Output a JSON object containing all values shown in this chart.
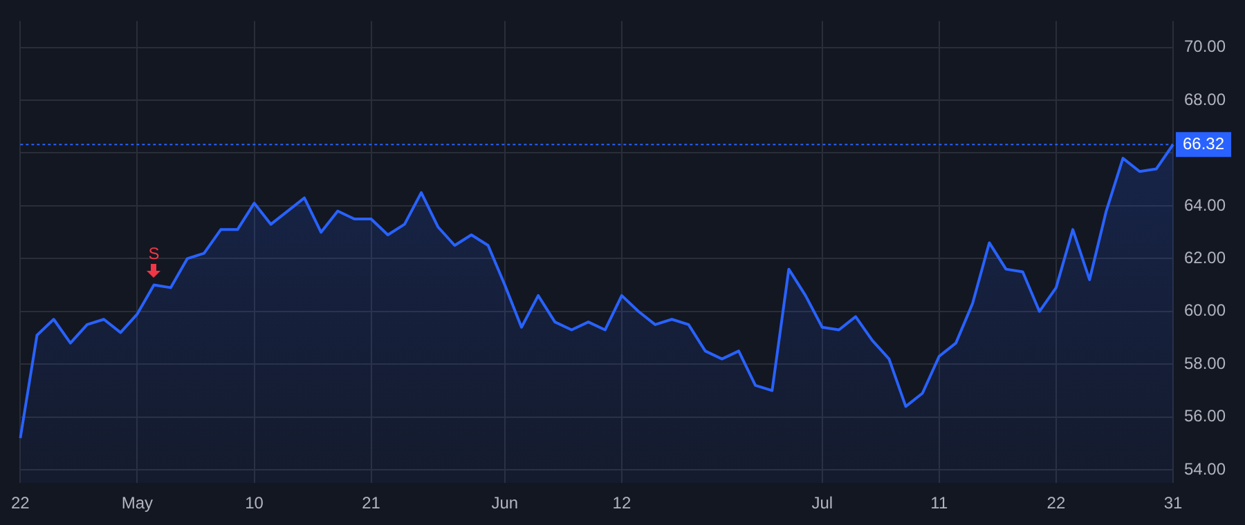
{
  "chart_data": {
    "type": "area",
    "categories": [
      "22",
      null,
      null,
      null,
      null,
      null,
      null,
      "May",
      null,
      null,
      null,
      null,
      null,
      null,
      "10",
      null,
      null,
      null,
      null,
      null,
      null,
      "21",
      null,
      null,
      null,
      null,
      null,
      null,
      null,
      "Jun",
      null,
      null,
      null,
      null,
      null,
      null,
      "12",
      null,
      null,
      null,
      null,
      null,
      null,
      null,
      null,
      null,
      null,
      null,
      "Jul",
      null,
      null,
      null,
      null,
      null,
      null,
      "11",
      null,
      null,
      null,
      null,
      null,
      null,
      "22",
      null,
      null,
      null,
      null,
      null,
      null,
      "31"
    ],
    "series": [
      {
        "color": "#2962ff",
        "values": [
          55.2,
          59.1,
          59.7,
          58.8,
          59.5,
          59.7,
          59.2,
          59.9,
          61.0,
          60.9,
          62.0,
          62.2,
          63.1,
          63.1,
          64.1,
          63.3,
          63.8,
          64.3,
          63.0,
          63.8,
          63.5,
          63.5,
          62.9,
          63.3,
          64.5,
          63.2,
          62.5,
          62.9,
          62.5,
          61.0,
          59.4,
          60.6,
          59.6,
          59.3,
          59.6,
          59.3,
          60.6,
          60.0,
          59.5,
          59.7,
          59.5,
          58.5,
          58.2,
          58.5,
          57.2,
          57.0,
          61.6,
          60.6,
          59.4,
          59.3,
          59.8,
          58.9,
          58.2,
          56.4,
          56.9,
          58.3,
          58.8,
          60.3,
          62.6,
          61.6,
          61.5,
          60.0,
          60.9,
          63.1,
          61.2,
          63.8,
          65.8,
          65.3,
          65.4,
          66.32
        ]
      }
    ],
    "ylim": [
      53.5,
      71.0
    ],
    "yticks": [
      {
        "value": 54,
        "label": "54.00"
      },
      {
        "value": 56,
        "label": "56.00"
      },
      {
        "value": 58,
        "label": "58.00"
      },
      {
        "value": 60,
        "label": "60.00"
      },
      {
        "value": 62,
        "label": "62.00"
      },
      {
        "value": 64,
        "label": "64.00"
      },
      {
        "value": 66,
        "label": null
      },
      {
        "value": 68,
        "label": "68.00"
      },
      {
        "value": 70,
        "label": "70.00"
      }
    ],
    "ref_lines": [
      {
        "axis": "y",
        "value": 66.32,
        "label": "66.32",
        "color": "#2962ff",
        "line_style": "dotted"
      }
    ],
    "annotations": [
      {
        "text": "S",
        "y": 61.0
      }
    ],
    "grid": true,
    "legend": false
  }
}
